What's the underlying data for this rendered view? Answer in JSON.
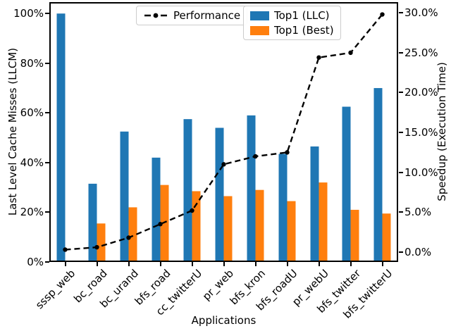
{
  "legend": {
    "performance_label": "Performance",
    "top1_llc_label": "Top1 (LLC)",
    "top1_best_label": "Top1 (Best)"
  },
  "chart_data": {
    "type": "bar",
    "subtype": "grouped bars with overlaid dashed line on secondary axis",
    "title": "",
    "xlabel": "Applications",
    "categories": [
      "sssp_web",
      "bc_road",
      "bc_urand",
      "bfs_road",
      "cc_twitterU",
      "pr_web",
      "bfs_kron",
      "bfs_roadU",
      "pr_webU",
      "bfs_twitter",
      "bfs_twitterU"
    ],
    "series": [
      {
        "name": "Top1 (LLC)",
        "type": "bar",
        "axis": "left",
        "color": "#1f77b4",
        "values": [
          100,
          31.5,
          52.5,
          42,
          57.5,
          54,
          59,
          43.5,
          46.5,
          62.5,
          70
        ]
      },
      {
        "name": "Top1 (Best)",
        "type": "bar",
        "axis": "left",
        "color": "#ff7f0e",
        "values": [
          0,
          15.5,
          22,
          31,
          28.5,
          26.5,
          29,
          24.5,
          32,
          21,
          19.5
        ]
      },
      {
        "name": "Performance",
        "type": "line",
        "axis": "right",
        "color": "#000000",
        "linestyle": "dashed",
        "marker": "o",
        "values": [
          0.3,
          0.6,
          1.8,
          3.5,
          5.2,
          11.0,
          12.0,
          12.5,
          24.4,
          25.0,
          29.8
        ]
      }
    ],
    "left_axis": {
      "label": "Last Level Cache Misses (LLCM)",
      "ticks": [
        "0%",
        "20%",
        "40%",
        "60%",
        "80%",
        "100%"
      ],
      "tick_values": [
        0,
        20,
        40,
        60,
        80,
        100
      ],
      "lim": [
        0,
        104.6
      ]
    },
    "right_axis": {
      "label": "Speedup (Execution Time)",
      "ticks": [
        "0.0%",
        "5.0%",
        "10.0%",
        "15.0%",
        "20.0%",
        "25.0%",
        "30.0%"
      ],
      "tick_values": [
        0,
        5,
        10,
        15,
        20,
        25,
        30
      ],
      "lim": [
        -1.25,
        31.35
      ]
    },
    "grid": false,
    "legend_position": "upper center"
  }
}
